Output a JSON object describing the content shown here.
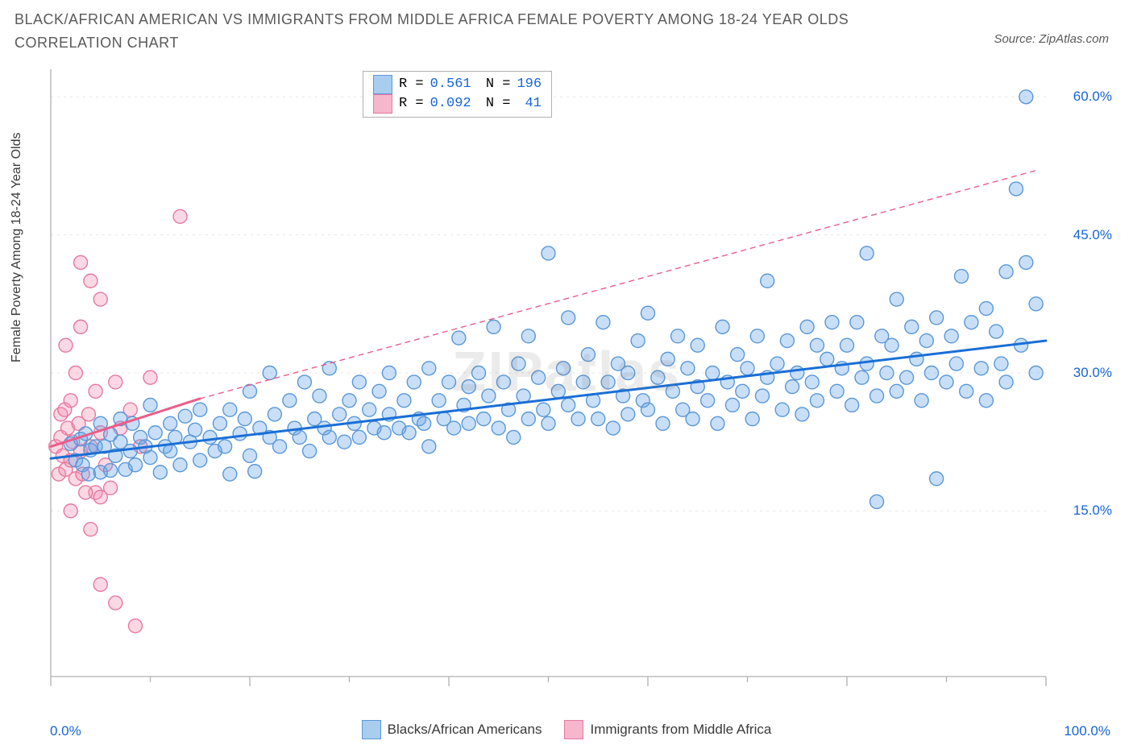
{
  "title": "BLACK/AFRICAN AMERICAN VS IMMIGRANTS FROM MIDDLE AFRICA FEMALE POVERTY AMONG 18-24 YEAR OLDS CORRELATION CHART",
  "source_label": "Source: ZipAtlas.com",
  "y_axis_label": "Female Poverty Among 18-24 Year Olds",
  "watermark": "ZIPatlas",
  "chart": {
    "type": "scatter",
    "plot_background": "#ffffff",
    "grid_color": "#e6e6e6",
    "axis_color": "#b0b0b0",
    "tick_color": "#b0b0b0",
    "x_range": [
      0,
      100
    ],
    "y_range": [
      -3,
      63
    ],
    "x_ticks_major": [
      0,
      20,
      40,
      60,
      80,
      100
    ],
    "x_ticks_minor": [
      10,
      30,
      50,
      70,
      90
    ],
    "x_start_label": "0.0%",
    "x_end_label": "100.0%",
    "y_ticks": [
      {
        "v": 15,
        "label": "15.0%"
      },
      {
        "v": 30,
        "label": "30.0%"
      },
      {
        "v": 45,
        "label": "45.0%"
      },
      {
        "v": 60,
        "label": "60.0%"
      }
    ],
    "marker_radius": 8.5,
    "marker_stroke_width": 1.4,
    "trend_solid_width": 3,
    "trend_dash_width": 1.4,
    "trend_dash_pattern": "6,6"
  },
  "series": {
    "blue": {
      "name": "Blacks/African Americans",
      "fill": "rgba(101,163,231,0.35)",
      "stroke": "#5a98d8",
      "swatch_fill": "#a9cdef",
      "swatch_stroke": "#5a98d8",
      "R": "0.561",
      "N": "196",
      "trend_color": "#1a6fd6",
      "trend_solid": {
        "x1": 0,
        "y1": 20.7,
        "x2": 100,
        "y2": 33.5
      },
      "trend_dash": {
        "x1": 0,
        "y1": 20.7,
        "x2": 100,
        "y2": 33.5
      }
    },
    "pink": {
      "name": "Immigrants from Middle Africa",
      "fill": "rgba(244,143,177,0.35)",
      "stroke": "#e6799f",
      "swatch_fill": "#f6b6cc",
      "swatch_stroke": "#e6799f",
      "R": "0.092",
      "N": "41",
      "trend_color": "#ea5e89",
      "trend_solid": {
        "x1": 0,
        "y1": 22.0,
        "x2": 15,
        "y2": 27.2
      },
      "trend_dash": {
        "x1": 15,
        "y1": 27.2,
        "x2": 99,
        "y2": 52.0
      }
    }
  },
  "points_blue": [
    [
      2.0,
      22.3
    ],
    [
      2.5,
      20.5
    ],
    [
      3.0,
      22.8
    ],
    [
      3.2,
      20.0
    ],
    [
      3.5,
      23.4
    ],
    [
      3.8,
      19.0
    ],
    [
      4.0,
      21.6
    ],
    [
      4.5,
      22.0
    ],
    [
      5.0,
      19.2
    ],
    [
      5.0,
      24.5
    ],
    [
      5.4,
      22.0
    ],
    [
      6.0,
      23.3
    ],
    [
      6.0,
      19.4
    ],
    [
      6.5,
      21.0
    ],
    [
      7.0,
      22.5
    ],
    [
      7.0,
      25.0
    ],
    [
      7.5,
      19.5
    ],
    [
      8.0,
      21.5
    ],
    [
      8.2,
      24.5
    ],
    [
      8.5,
      20.0
    ],
    [
      9.0,
      23.0
    ],
    [
      9.5,
      22.0
    ],
    [
      10.0,
      20.8
    ],
    [
      10.0,
      26.5
    ],
    [
      10.5,
      23.5
    ],
    [
      11.0,
      19.2
    ],
    [
      11.5,
      22.0
    ],
    [
      12.0,
      24.5
    ],
    [
      12.0,
      21.5
    ],
    [
      12.5,
      23.0
    ],
    [
      13.0,
      20.0
    ],
    [
      13.5,
      25.3
    ],
    [
      14.0,
      22.5
    ],
    [
      14.5,
      23.8
    ],
    [
      15.0,
      20.5
    ],
    [
      15.0,
      26.0
    ],
    [
      16.0,
      23.0
    ],
    [
      16.5,
      21.5
    ],
    [
      17.0,
      24.5
    ],
    [
      17.5,
      22.0
    ],
    [
      18.0,
      26.0
    ],
    [
      18.0,
      19.0
    ],
    [
      19.0,
      23.4
    ],
    [
      19.5,
      25.0
    ],
    [
      20.0,
      21.0
    ],
    [
      20.0,
      28.0
    ],
    [
      20.5,
      19.3
    ],
    [
      21.0,
      24.0
    ],
    [
      22.0,
      23.0
    ],
    [
      22.0,
      30.0
    ],
    [
      22.5,
      25.5
    ],
    [
      23.0,
      22.0
    ],
    [
      24.0,
      27.0
    ],
    [
      24.5,
      24.0
    ],
    [
      25.0,
      23.0
    ],
    [
      25.5,
      29.0
    ],
    [
      26.0,
      21.5
    ],
    [
      26.5,
      25.0
    ],
    [
      27.0,
      27.5
    ],
    [
      27.5,
      24.0
    ],
    [
      28.0,
      23.0
    ],
    [
      28.0,
      30.5
    ],
    [
      29.0,
      25.5
    ],
    [
      29.5,
      22.5
    ],
    [
      30.0,
      27.0
    ],
    [
      30.5,
      24.5
    ],
    [
      31.0,
      23.0
    ],
    [
      31.0,
      29.0
    ],
    [
      32.0,
      26.0
    ],
    [
      32.5,
      24.0
    ],
    [
      33.0,
      28.0
    ],
    [
      33.5,
      23.5
    ],
    [
      34.0,
      25.5
    ],
    [
      34.0,
      30.0
    ],
    [
      35.0,
      24.0
    ],
    [
      35.5,
      27.0
    ],
    [
      36.0,
      23.5
    ],
    [
      36.5,
      29.0
    ],
    [
      37.0,
      25.0
    ],
    [
      37.5,
      24.5
    ],
    [
      38.0,
      30.5
    ],
    [
      38.0,
      22.0
    ],
    [
      39.0,
      27.0
    ],
    [
      39.5,
      25.0
    ],
    [
      40.0,
      29.0
    ],
    [
      40.5,
      24.0
    ],
    [
      41.0,
      33.8
    ],
    [
      41.5,
      26.5
    ],
    [
      42.0,
      24.5
    ],
    [
      42.0,
      28.5
    ],
    [
      43.0,
      30.0
    ],
    [
      43.5,
      25.0
    ],
    [
      44.0,
      27.5
    ],
    [
      44.5,
      35.0
    ],
    [
      45.0,
      24.0
    ],
    [
      45.5,
      29.0
    ],
    [
      46.0,
      26.0
    ],
    [
      46.5,
      23.0
    ],
    [
      47.0,
      31.0
    ],
    [
      47.5,
      27.5
    ],
    [
      48.0,
      25.0
    ],
    [
      48.0,
      34.0
    ],
    [
      49.0,
      29.5
    ],
    [
      49.5,
      26.0
    ],
    [
      50.0,
      43.0
    ],
    [
      50.0,
      24.5
    ],
    [
      51.0,
      28.0
    ],
    [
      51.5,
      30.5
    ],
    [
      52.0,
      26.5
    ],
    [
      52.0,
      36.0
    ],
    [
      53.0,
      25.0
    ],
    [
      53.5,
      29.0
    ],
    [
      54.0,
      32.0
    ],
    [
      54.5,
      27.0
    ],
    [
      55.0,
      25.0
    ],
    [
      55.5,
      35.5
    ],
    [
      56.0,
      29.0
    ],
    [
      56.5,
      24.0
    ],
    [
      57.0,
      31.0
    ],
    [
      57.5,
      27.5
    ],
    [
      58.0,
      25.5
    ],
    [
      58.0,
      30.0
    ],
    [
      59.0,
      33.5
    ],
    [
      59.5,
      27.0
    ],
    [
      60.0,
      26.0
    ],
    [
      60.0,
      36.5
    ],
    [
      61.0,
      29.5
    ],
    [
      61.5,
      24.5
    ],
    [
      62.0,
      31.5
    ],
    [
      62.5,
      28.0
    ],
    [
      63.0,
      34.0
    ],
    [
      63.5,
      26.0
    ],
    [
      64.0,
      30.5
    ],
    [
      64.5,
      25.0
    ],
    [
      65.0,
      28.5
    ],
    [
      65.0,
      33.0
    ],
    [
      66.0,
      27.0
    ],
    [
      66.5,
      30.0
    ],
    [
      67.0,
      24.5
    ],
    [
      67.5,
      35.0
    ],
    [
      68.0,
      29.0
    ],
    [
      68.5,
      26.5
    ],
    [
      69.0,
      32.0
    ],
    [
      69.5,
      28.0
    ],
    [
      70.0,
      30.5
    ],
    [
      70.5,
      25.0
    ],
    [
      71.0,
      34.0
    ],
    [
      71.5,
      27.5
    ],
    [
      72.0,
      29.5
    ],
    [
      72.0,
      40.0
    ],
    [
      73.0,
      31.0
    ],
    [
      73.5,
      26.0
    ],
    [
      74.0,
      33.5
    ],
    [
      74.5,
      28.5
    ],
    [
      75.0,
      30.0
    ],
    [
      75.5,
      25.5
    ],
    [
      76.0,
      35.0
    ],
    [
      76.5,
      29.0
    ],
    [
      77.0,
      27.0
    ],
    [
      77.0,
      33.0
    ],
    [
      78.0,
      31.5
    ],
    [
      78.5,
      35.5
    ],
    [
      79.0,
      28.0
    ],
    [
      79.5,
      30.5
    ],
    [
      80.0,
      33.0
    ],
    [
      80.5,
      26.5
    ],
    [
      81.0,
      35.5
    ],
    [
      81.5,
      29.5
    ],
    [
      82.0,
      31.0
    ],
    [
      82.0,
      43.0
    ],
    [
      83.0,
      27.5
    ],
    [
      83.5,
      34.0
    ],
    [
      84.0,
      30.0
    ],
    [
      84.5,
      33.0
    ],
    [
      85.0,
      28.0
    ],
    [
      85.0,
      38.0
    ],
    [
      86.0,
      29.5
    ],
    [
      86.5,
      35.0
    ],
    [
      87.0,
      31.5
    ],
    [
      87.5,
      27.0
    ],
    [
      88.0,
      33.5
    ],
    [
      88.5,
      30.0
    ],
    [
      89.0,
      36.0
    ],
    [
      89.0,
      18.5
    ],
    [
      90.0,
      29.0
    ],
    [
      90.5,
      34.0
    ],
    [
      91.0,
      31.0
    ],
    [
      91.5,
      40.5
    ],
    [
      92.0,
      28.0
    ],
    [
      92.5,
      35.5
    ],
    [
      83.0,
      16.0
    ],
    [
      93.5,
      30.5
    ],
    [
      94.0,
      37.0
    ],
    [
      94.0,
      27.0
    ],
    [
      95.0,
      34.5
    ],
    [
      95.5,
      31.0
    ],
    [
      96.0,
      41.0
    ],
    [
      96.0,
      29.0
    ],
    [
      97.0,
      50.0
    ],
    [
      97.5,
      33.0
    ],
    [
      98.0,
      42.0
    ],
    [
      98.0,
      60.0
    ],
    [
      99.0,
      30.0
    ],
    [
      99.0,
      37.5
    ]
  ],
  "points_pink": [
    [
      0.5,
      22.0
    ],
    [
      0.8,
      19.0
    ],
    [
      1.0,
      25.5
    ],
    [
      1.0,
      23.0
    ],
    [
      1.2,
      21.0
    ],
    [
      1.4,
      26.0
    ],
    [
      1.5,
      19.5
    ],
    [
      1.5,
      33.0
    ],
    [
      1.7,
      24.0
    ],
    [
      2.0,
      20.5
    ],
    [
      2.0,
      27.0
    ],
    [
      2.0,
      15.0
    ],
    [
      2.2,
      22.5
    ],
    [
      2.5,
      18.5
    ],
    [
      2.5,
      30.0
    ],
    [
      2.8,
      24.5
    ],
    [
      3.0,
      21.5
    ],
    [
      3.0,
      35.0
    ],
    [
      3.2,
      19.0
    ],
    [
      3.0,
      42.0
    ],
    [
      3.8,
      25.5
    ],
    [
      4.0,
      22.0
    ],
    [
      4.0,
      40.0
    ],
    [
      4.5,
      17.0
    ],
    [
      4.5,
      28.0
    ],
    [
      5.0,
      23.5
    ],
    [
      5.0,
      38.0
    ],
    [
      5.5,
      20.0
    ],
    [
      6.0,
      17.5
    ],
    [
      6.5,
      29.0
    ],
    [
      5.0,
      16.5
    ],
    [
      7.0,
      24.0
    ],
    [
      3.5,
      17.0
    ],
    [
      8.0,
      26.0
    ],
    [
      4.0,
      13.0
    ],
    [
      9.0,
      22.0
    ],
    [
      8.5,
      2.5
    ],
    [
      6.5,
      5.0
    ],
    [
      10.0,
      29.5
    ],
    [
      13.0,
      47.0
    ],
    [
      5.0,
      7.0
    ]
  ]
}
